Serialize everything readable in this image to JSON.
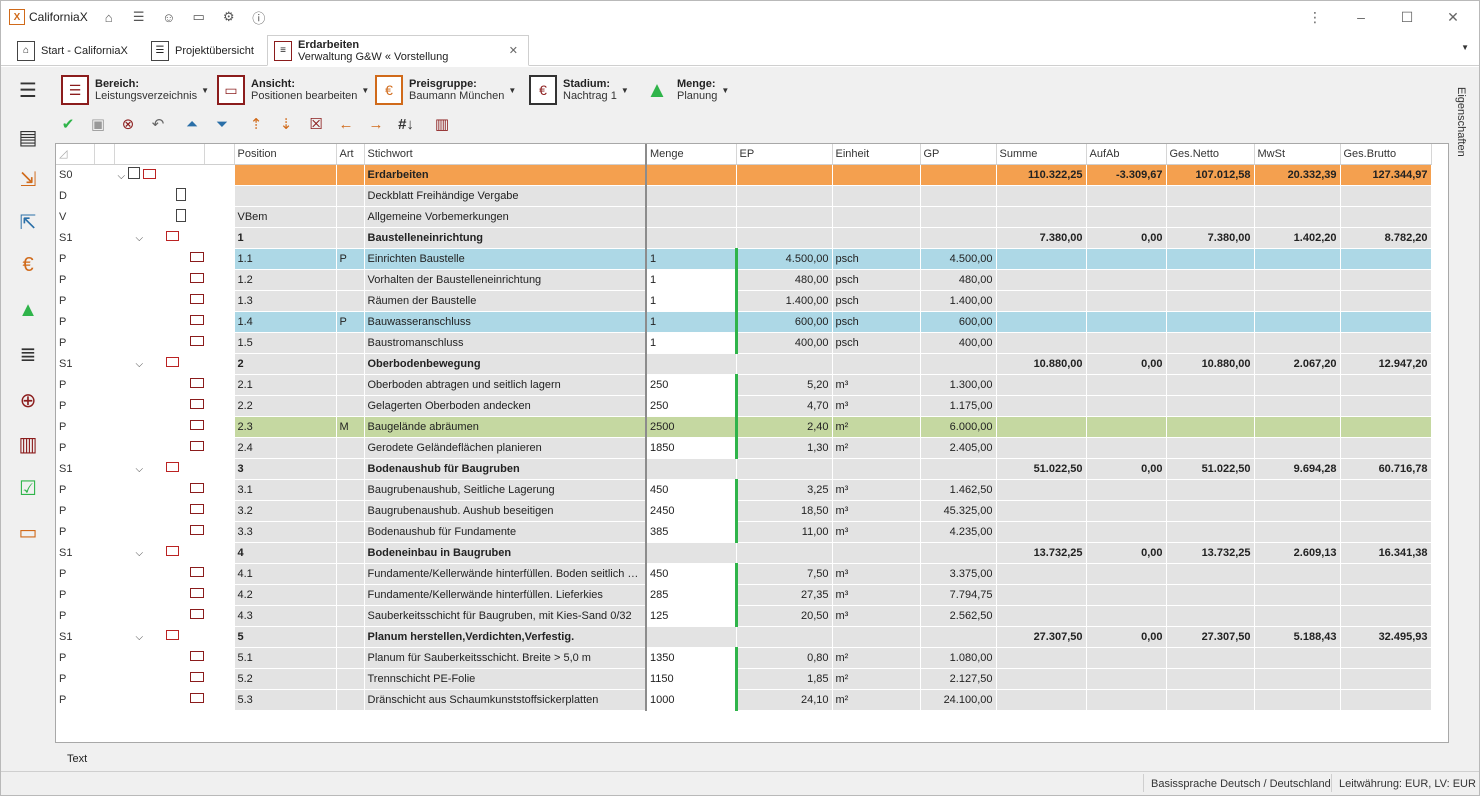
{
  "app": {
    "title": "CaliforniaX"
  },
  "tabs": [
    {
      "label": "Start - CaliforniaX"
    },
    {
      "label": "Projektübersicht"
    },
    {
      "title": "Erdarbeiten",
      "subtitle": "Verwaltung G&W « Vorstellung"
    }
  ],
  "ribbon": {
    "bereich": {
      "label": "Bereich:",
      "value": "Leistungsverzeichnis"
    },
    "ansicht": {
      "label": "Ansicht:",
      "value": "Positionen bearbeiten"
    },
    "preisgruppe": {
      "label": "Preisgruppe:",
      "value": "Baumann München"
    },
    "stadium": {
      "label": "Stadium:",
      "value": "Nachtrag 1"
    },
    "menge": {
      "label": "Menge:",
      "value": "Planung"
    }
  },
  "properties_label": "Eigenschaften",
  "columns": [
    "Position",
    "Art",
    "Stichwort",
    "Menge",
    "EP",
    "Einheit",
    "GP",
    "Summe",
    "AufAb",
    "Ges.Netto",
    "MwSt",
    "Ges.Brutto"
  ],
  "rows": [
    {
      "t": "S0",
      "pos": "",
      "art": "",
      "kw": "Erdarbeiten",
      "mg": "",
      "ep": "",
      "eh": "",
      "gp": "",
      "sum": "110.322,25",
      "aa": "-3.309,67",
      "net": "107.012,58",
      "mw": "20.332,39",
      "br": "127.344,97"
    },
    {
      "t": "D",
      "pos": "",
      "art": "",
      "kw": "Deckblatt Freihändige Vergabe",
      "mg": "",
      "ep": "",
      "eh": "",
      "gp": "",
      "sum": "",
      "aa": "",
      "net": "",
      "mw": "",
      "br": ""
    },
    {
      "t": "V",
      "pos": "VBem",
      "art": "",
      "kw": "Allgemeine Vorbemerkungen",
      "mg": "",
      "ep": "",
      "eh": "",
      "gp": "",
      "sum": "",
      "aa": "",
      "net": "",
      "mw": "",
      "br": ""
    },
    {
      "t": "S1",
      "pos": "1",
      "art": "",
      "kw": "Baustelleneinrichtung",
      "mg": "",
      "ep": "",
      "eh": "",
      "gp": "",
      "sum": "7.380,00",
      "aa": "0,00",
      "net": "7.380,00",
      "mw": "1.402,20",
      "br": "8.782,20"
    },
    {
      "t": "P",
      "pos": "1.1",
      "art": "P",
      "kw": "Einrichten Baustelle",
      "mg": "1",
      "ep": "4.500,00",
      "eh": "psch",
      "gp": "4.500,00",
      "sum": "",
      "aa": "",
      "net": "",
      "mw": "",
      "br": "",
      "hl": "blue"
    },
    {
      "t": "P",
      "pos": "1.2",
      "art": "",
      "kw": "Vorhalten der Baustelleneinrichtung",
      "mg": "1",
      "ep": "480,00",
      "eh": "psch",
      "gp": "480,00",
      "sum": "",
      "aa": "",
      "net": "",
      "mw": "",
      "br": ""
    },
    {
      "t": "P",
      "pos": "1.3",
      "art": "",
      "kw": "Räumen der Baustelle",
      "mg": "1",
      "ep": "1.400,00",
      "eh": "psch",
      "gp": "1.400,00",
      "sum": "",
      "aa": "",
      "net": "",
      "mw": "",
      "br": ""
    },
    {
      "t": "P",
      "pos": "1.4",
      "art": "P",
      "kw": "Bauwasseranschluss",
      "mg": "1",
      "ep": "600,00",
      "eh": "psch",
      "gp": "600,00",
      "sum": "",
      "aa": "",
      "net": "",
      "mw": "",
      "br": "",
      "hl": "blue"
    },
    {
      "t": "P",
      "pos": "1.5",
      "art": "",
      "kw": "Baustromanschluss",
      "mg": "1",
      "ep": "400,00",
      "eh": "psch",
      "gp": "400,00",
      "sum": "",
      "aa": "",
      "net": "",
      "mw": "",
      "br": ""
    },
    {
      "t": "S1",
      "pos": "2",
      "art": "",
      "kw": "Oberbodenbewegung",
      "mg": "",
      "ep": "",
      "eh": "",
      "gp": "",
      "sum": "10.880,00",
      "aa": "0,00",
      "net": "10.880,00",
      "mw": "2.067,20",
      "br": "12.947,20"
    },
    {
      "t": "P",
      "pos": "2.1",
      "art": "",
      "kw": "Oberboden abtragen und seitlich lagern",
      "mg": "250",
      "ep": "5,20",
      "eh": "m³",
      "gp": "1.300,00",
      "sum": "",
      "aa": "",
      "net": "",
      "mw": "",
      "br": ""
    },
    {
      "t": "P",
      "pos": "2.2",
      "art": "",
      "kw": "Gelagerten Oberboden andecken",
      "mg": "250",
      "ep": "4,70",
      "eh": "m³",
      "gp": "1.175,00",
      "sum": "",
      "aa": "",
      "net": "",
      "mw": "",
      "br": ""
    },
    {
      "t": "P",
      "pos": "2.3",
      "art": "M",
      "kw": "Baugelände abräumen",
      "mg": "2500",
      "ep": "2,40",
      "eh": "m²",
      "gp": "6.000,00",
      "sum": "",
      "aa": "",
      "net": "",
      "mw": "",
      "br": "",
      "hl": "green"
    },
    {
      "t": "P",
      "pos": "2.4",
      "art": "",
      "kw": "Gerodete Geländeflächen planieren",
      "mg": "1850",
      "ep": "1,30",
      "eh": "m²",
      "gp": "2.405,00",
      "sum": "",
      "aa": "",
      "net": "",
      "mw": "",
      "br": ""
    },
    {
      "t": "S1",
      "pos": "3",
      "art": "",
      "kw": "Bodenaushub für Baugruben",
      "mg": "",
      "ep": "",
      "eh": "",
      "gp": "",
      "sum": "51.022,50",
      "aa": "0,00",
      "net": "51.022,50",
      "mw": "9.694,28",
      "br": "60.716,78"
    },
    {
      "t": "P",
      "pos": "3.1",
      "art": "",
      "kw": "Baugrubenaushub, Seitliche Lagerung",
      "mg": "450",
      "ep": "3,25",
      "eh": "m³",
      "gp": "1.462,50",
      "sum": "",
      "aa": "",
      "net": "",
      "mw": "",
      "br": ""
    },
    {
      "t": "P",
      "pos": "3.2",
      "art": "",
      "kw": "Baugrubenaushub. Aushub beseitigen",
      "mg": "2450",
      "ep": "18,50",
      "eh": "m³",
      "gp": "45.325,00",
      "sum": "",
      "aa": "",
      "net": "",
      "mw": "",
      "br": ""
    },
    {
      "t": "P",
      "pos": "3.3",
      "art": "",
      "kw": "Bodenaushub für Fundamente",
      "mg": "385",
      "ep": "11,00",
      "eh": "m³",
      "gp": "4.235,00",
      "sum": "",
      "aa": "",
      "net": "",
      "mw": "",
      "br": ""
    },
    {
      "t": "S1",
      "pos": "4",
      "art": "",
      "kw": "Bodeneinbau in Baugruben",
      "mg": "",
      "ep": "",
      "eh": "",
      "gp": "",
      "sum": "13.732,25",
      "aa": "0,00",
      "net": "13.732,25",
      "mw": "2.609,13",
      "br": "16.341,38"
    },
    {
      "t": "P",
      "pos": "4.1",
      "art": "",
      "kw": "Fundamente/Kellerwände hinterfüllen. Boden seitlich g...",
      "mg": "450",
      "ep": "7,50",
      "eh": "m³",
      "gp": "3.375,00",
      "sum": "",
      "aa": "",
      "net": "",
      "mw": "",
      "br": ""
    },
    {
      "t": "P",
      "pos": "4.2",
      "art": "",
      "kw": "Fundamente/Kellerwände hinterfüllen. Lieferkies",
      "mg": "285",
      "ep": "27,35",
      "eh": "m³",
      "gp": "7.794,75",
      "sum": "",
      "aa": "",
      "net": "",
      "mw": "",
      "br": ""
    },
    {
      "t": "P",
      "pos": "4.3",
      "art": "",
      "kw": "Sauberkeitsschicht für Baugruben, mit Kies-Sand 0/32",
      "mg": "125",
      "ep": "20,50",
      "eh": "m³",
      "gp": "2.562,50",
      "sum": "",
      "aa": "",
      "net": "",
      "mw": "",
      "br": ""
    },
    {
      "t": "S1",
      "pos": "5",
      "art": "",
      "kw": "Planum herstellen,Verdichten,Verfestig.",
      "mg": "",
      "ep": "",
      "eh": "",
      "gp": "",
      "sum": "27.307,50",
      "aa": "0,00",
      "net": "27.307,50",
      "mw": "5.188,43",
      "br": "32.495,93"
    },
    {
      "t": "P",
      "pos": "5.1",
      "art": "",
      "kw": "Planum für Sauberkeitsschicht. Breite > 5,0 m",
      "mg": "1350",
      "ep": "0,80",
      "eh": "m²",
      "gp": "1.080,00",
      "sum": "",
      "aa": "",
      "net": "",
      "mw": "",
      "br": ""
    },
    {
      "t": "P",
      "pos": "5.2",
      "art": "",
      "kw": "Trennschicht PE-Folie",
      "mg": "1150",
      "ep": "1,85",
      "eh": "m²",
      "gp": "2.127,50",
      "sum": "",
      "aa": "",
      "net": "",
      "mw": "",
      "br": ""
    },
    {
      "t": "P",
      "pos": "5.3",
      "art": "",
      "kw": "Dränschicht aus Schaumkunststoffsickerplatten",
      "mg": "1000",
      "ep": "24,10",
      "eh": "m²",
      "gp": "24.100,00",
      "sum": "",
      "aa": "",
      "net": "",
      "mw": "",
      "br": ""
    }
  ],
  "bottom_label": "Text",
  "status": {
    "language": "Basissprache Deutsch / Deutschland",
    "currency": "Leitwährung: EUR, LV: EUR"
  },
  "colors": {
    "s0_row": "#f4a04f",
    "highlight_blue": "#add8e6",
    "highlight_green": "#c5d8a1",
    "accent": "#8b1c1c",
    "menge_marker": "#2fb44a"
  }
}
